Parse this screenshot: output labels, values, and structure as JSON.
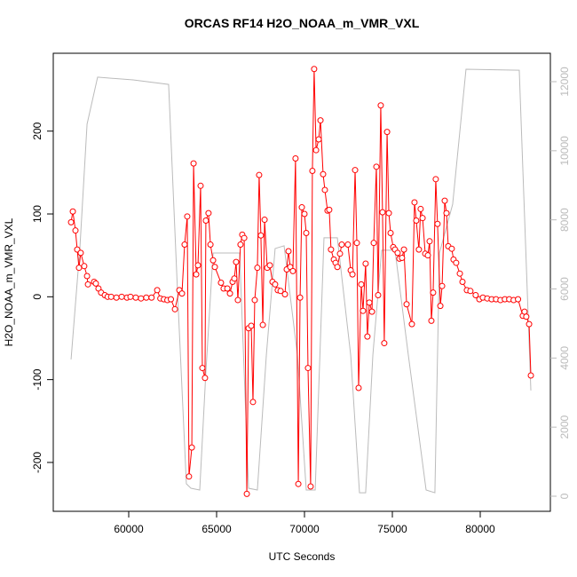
{
  "chart_data": {
    "type": "line",
    "title": "ORCAS RF14 H2O_NOAA_m_VMR_VXL",
    "x_label": "UTC Seconds",
    "y_label": "H2O_NOAA_m_VMR_VXL",
    "xlim": [
      55707,
      83990
    ],
    "ylim": [
      -259,
      294
    ],
    "y2lim": [
      -437,
      12822
    ],
    "xticks": [
      60000,
      65000,
      70000,
      75000,
      80000
    ],
    "yticks": [
      -200,
      -100,
      0,
      100,
      200
    ],
    "y2ticks": [
      0,
      2000,
      4000,
      6000,
      8000,
      10000,
      12000
    ],
    "y2_color": "#bbbbbb",
    "series": [
      {
        "color": "#ff0000",
        "markers": true,
        "x": [
          56720,
          56820,
          56970,
          57070,
          57170,
          57270,
          57470,
          57630,
          57680,
          58030,
          58130,
          58280,
          58430,
          58640,
          58800,
          59000,
          59300,
          59600,
          59900,
          60100,
          60400,
          60700,
          61000,
          61300,
          61620,
          61800,
          62000,
          62200,
          62400,
          62630,
          62880,
          63030,
          63180,
          63330,
          63430,
          63590,
          63690,
          63840,
          63940,
          64090,
          64190,
          64340,
          64390,
          64540,
          64650,
          64800,
          64900,
          65250,
          65400,
          65610,
          65760,
          65910,
          66010,
          66110,
          66210,
          66360,
          66460,
          66570,
          66720,
          66820,
          66970,
          67070,
          67170,
          67320,
          67420,
          67520,
          67630,
          67730,
          67880,
          68030,
          68180,
          68330,
          68480,
          68640,
          68890,
          68990,
          69090,
          69190,
          69340,
          69490,
          69650,
          69750,
          69850,
          70000,
          70100,
          70200,
          70350,
          70450,
          70550,
          70660,
          70810,
          70910,
          71060,
          71160,
          71310,
          71410,
          71510,
          71670,
          71770,
          71870,
          72020,
          72120,
          72470,
          72630,
          72730,
          72880,
          72980,
          73080,
          73230,
          73330,
          73480,
          73580,
          73690,
          73840,
          73940,
          74090,
          74190,
          74340,
          74440,
          74540,
          74700,
          74800,
          74900,
          75050,
          75150,
          75300,
          75400,
          75550,
          75660,
          75810,
          76110,
          76260,
          76360,
          76510,
          76610,
          76720,
          76870,
          77020,
          77120,
          77220,
          77320,
          77470,
          77570,
          77730,
          77830,
          77980,
          78080,
          78180,
          78380,
          78480,
          78630,
          78840,
          78990,
          79240,
          79440,
          79740,
          79950,
          80150,
          80400,
          80650,
          80900,
          81150,
          81400,
          81650,
          81900,
          82150,
          82420,
          82520,
          82620,
          82780,
          82880
        ],
        "values": [
          90,
          103,
          80,
          57,
          35,
          53,
          37,
          25,
          15,
          18,
          16,
          10,
          5,
          2,
          0,
          0,
          -1,
          0,
          -1,
          0,
          -1,
          -2,
          -1,
          -1,
          8,
          -2,
          -3,
          -4,
          -3,
          -15,
          8,
          4,
          63,
          97,
          -217,
          -182,
          161,
          27,
          38,
          134,
          -86,
          -98,
          92,
          101,
          63,
          44,
          36,
          17,
          10,
          10,
          4,
          18,
          22,
          42,
          -4,
          63,
          75,
          71,
          -238,
          -38,
          -35,
          -127,
          -4,
          35,
          147,
          74,
          -34,
          93,
          35,
          38,
          18,
          15,
          8,
          7,
          3,
          33,
          55,
          36,
          31,
          167,
          -226,
          -1,
          108,
          100,
          77,
          -86,
          -229,
          152,
          275,
          177,
          190,
          213,
          148,
          129,
          104,
          105,
          57,
          45,
          41,
          36,
          52,
          63,
          63,
          32,
          27,
          153,
          65,
          -110,
          15,
          -17,
          40,
          -48,
          -7,
          -18,
          65,
          157,
          2,
          231,
          102,
          -56,
          199,
          101,
          77,
          60,
          57,
          53,
          46,
          47,
          57,
          -9,
          -33,
          114,
          92,
          57,
          106,
          95,
          52,
          50,
          67,
          -29,
          5,
          142,
          88,
          -11,
          13,
          116,
          101,
          61,
          58,
          45,
          41,
          28,
          18,
          8,
          7,
          2,
          -3,
          -1,
          -2,
          -3,
          -3,
          -4,
          -3,
          -3,
          -4,
          -3,
          -23,
          -18,
          -24,
          -33,
          -95
        ]
      },
      {
        "color": "#bbbbbb",
        "axis": "y2",
        "markers": false,
        "x": [
          56720,
          57220,
          57630,
          58230,
          60250,
          62270,
          62780,
          63280,
          63540,
          64040,
          64390,
          64800,
          66310,
          66820,
          67320,
          67830,
          68330,
          68840,
          69600,
          70100,
          70610,
          71110,
          71870,
          72630,
          73130,
          73480,
          73890,
          74390,
          75150,
          75910,
          76920,
          77420,
          77680,
          78430,
          79190,
          82220,
          82880
        ],
        "values": [
          3960,
          7170,
          10770,
          12130,
          12050,
          11920,
          5880,
          360,
          230,
          180,
          3590,
          7040,
          7040,
          230,
          180,
          4080,
          7170,
          7250,
          4080,
          180,
          180,
          7480,
          7480,
          4080,
          100,
          100,
          4080,
          7120,
          7120,
          4080,
          180,
          100,
          7040,
          8450,
          12360,
          12330,
          3060
        ]
      }
    ]
  }
}
